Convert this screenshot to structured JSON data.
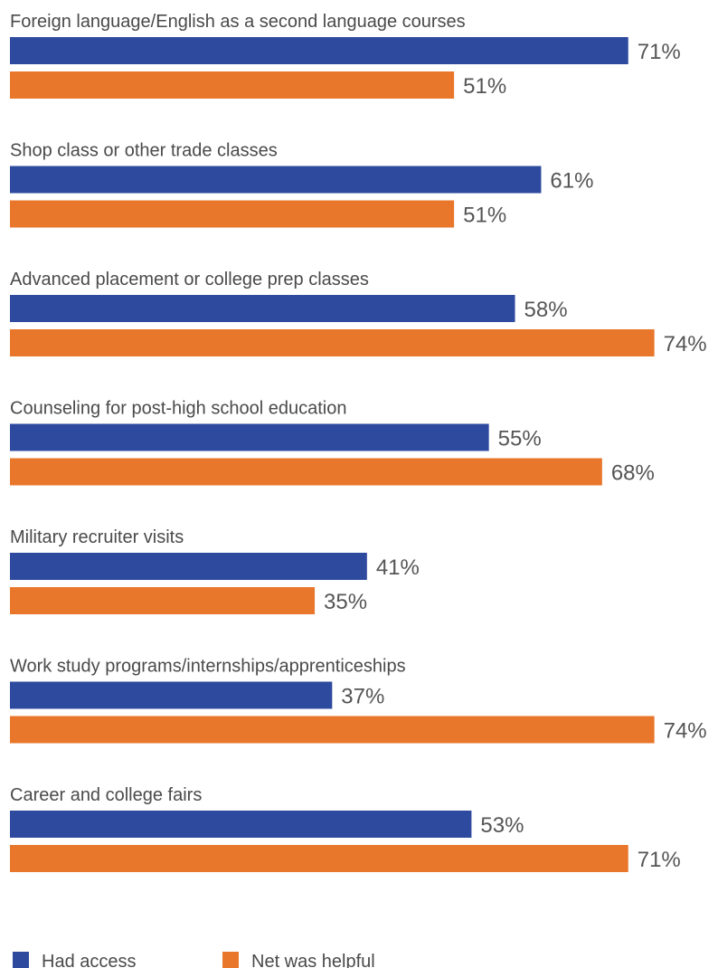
{
  "chart_data": {
    "type": "bar",
    "orientation": "horizontal",
    "categories": [
      "Foreign language/English as a second language courses",
      "Shop class or other trade classes",
      "Advanced placement or college prep classes",
      "Counseling for post-high school education",
      "Military recruiter visits",
      "Work study programs/internships/apprenticeships",
      "Career and college fairs"
    ],
    "series": [
      {
        "name": "Had access",
        "color": "#2e4a9e",
        "values": [
          71,
          61,
          58,
          55,
          41,
          37,
          53
        ],
        "labels": [
          "71%",
          "61%",
          "58%",
          "55%",
          "41%",
          "37%",
          "53%"
        ]
      },
      {
        "name": "Net was helpful",
        "color": "#e8762b",
        "values": [
          51,
          51,
          74,
          68,
          35,
          74,
          71
        ],
        "labels": [
          "51%",
          "51%",
          "74%",
          "68%",
          "35%",
          "74%",
          "71%"
        ]
      }
    ],
    "xlim": [
      0,
      100
    ],
    "unit": "%",
    "grid": false,
    "legend_position": "bottom-left"
  }
}
